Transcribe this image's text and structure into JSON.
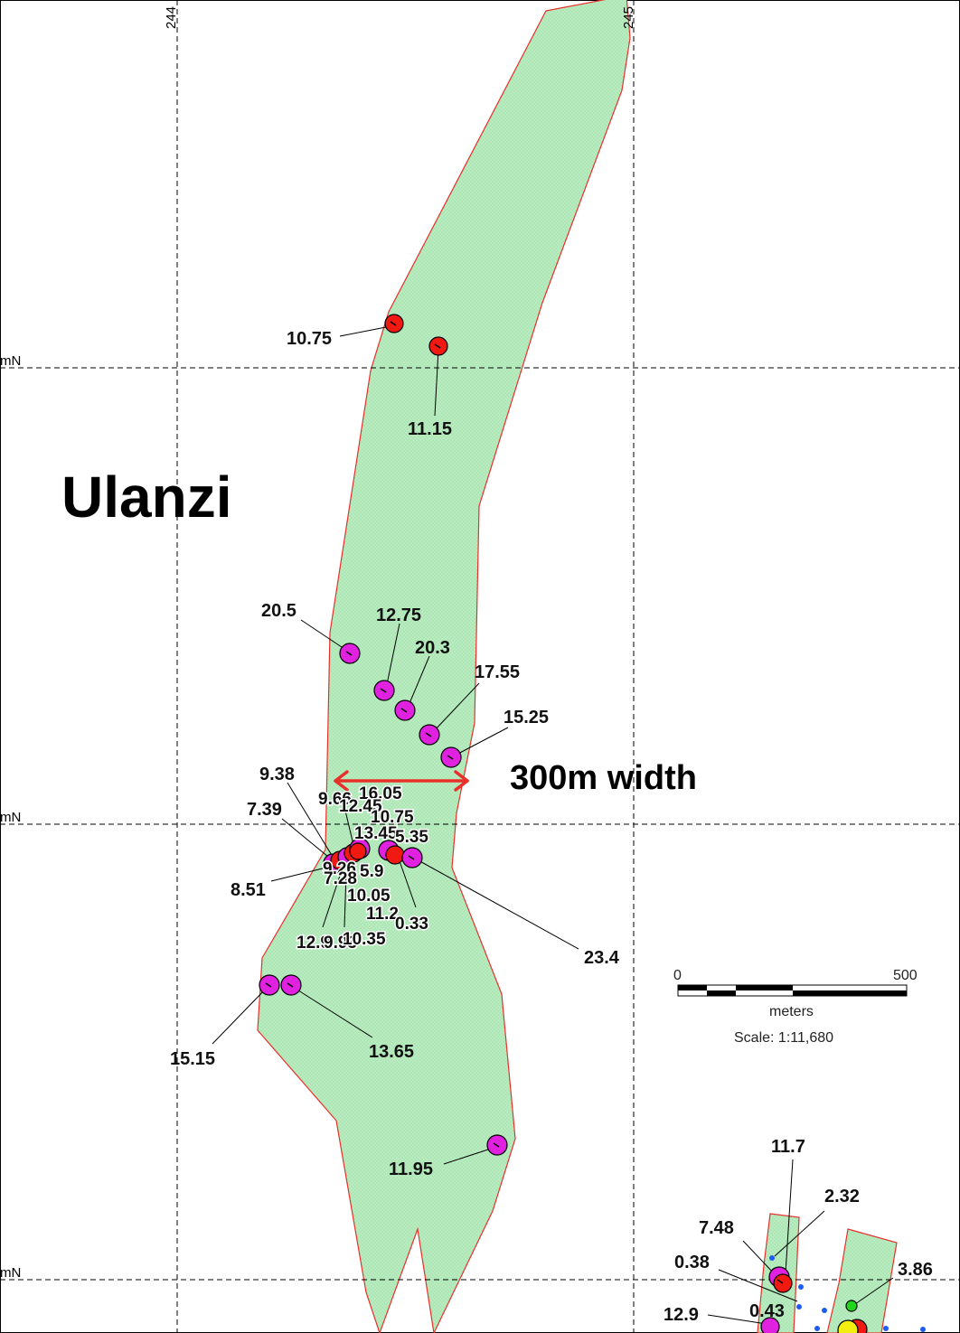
{
  "map": {
    "title": "Ulanzi",
    "width_annotation": "300m width",
    "grid": {
      "easting_labels": [
        "244",
        "245"
      ],
      "northing_label": "mN"
    },
    "scale_bar": {
      "start": "0",
      "end": "500",
      "unit": "meters",
      "scale_text": "Scale: 1:11,680"
    },
    "colors": {
      "zone_fill": "#b9ecc0",
      "zone_outline": "#e8302a",
      "sample_magenta": "#e021e0",
      "sample_red": "#f01a12",
      "sample_green": "#22d61e",
      "sample_yellow": "#f2ee10",
      "survey_point": "#1e5cf2",
      "width_arrow": "#e8302a"
    },
    "sample_labels": {
      "a1": "10.75",
      "a2": "11.15",
      "b1": "20.5",
      "b2": "12.75",
      "b3": "20.3",
      "b4": "17.55",
      "b5": "15.25",
      "c1": "9.38",
      "c2": "9.66",
      "c3": "16.05",
      "c4": "12.45",
      "c5": "10.75",
      "c6": "7.39",
      "c7": "13.45",
      "c8": "5.35",
      "c9": "9.26",
      "c10": "7.28",
      "c11": "5.9",
      "c12": "8.51",
      "c13": "10.05",
      "c14": "11.2",
      "c15": "0.33",
      "c16": "12.9",
      "c17": "9.93",
      "c18": "10.35",
      "c19": "23.4",
      "d1": "15.15",
      "d2": "13.65",
      "d3": "11.95",
      "e1": "11.7",
      "e2": "2.32",
      "e3": "7.48",
      "e4": "3.86",
      "e5": "0.38",
      "e6": "0.43",
      "e7": "12.9"
    }
  }
}
